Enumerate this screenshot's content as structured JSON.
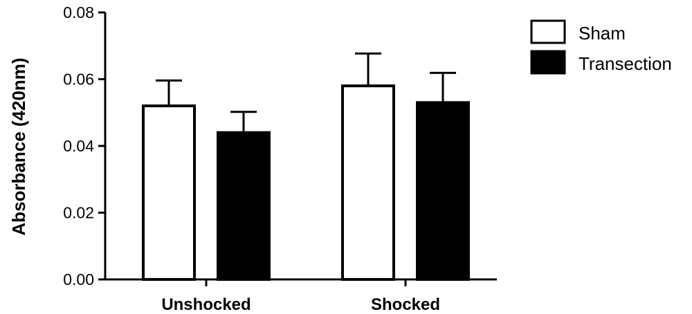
{
  "chart_data": {
    "type": "bar",
    "categories": [
      "Unshocked",
      "Shocked"
    ],
    "series": [
      {
        "name": "Sham",
        "values": [
          0.052,
          0.058
        ],
        "errors": [
          0.0076,
          0.0097
        ],
        "fill": "#ffffff",
        "stroke": "#000000"
      },
      {
        "name": "Transection",
        "values": [
          0.044,
          0.053
        ],
        "errors": [
          0.0062,
          0.0089
        ],
        "fill": "#000000",
        "stroke": "#000000"
      }
    ],
    "ylabel": "Absorbance (420nm)",
    "xlabel": "",
    "ylim": [
      0,
      0.08
    ],
    "yticks": [
      0.0,
      0.02,
      0.04,
      0.06,
      0.08
    ],
    "ytick_labels": [
      "0.00",
      "0.02",
      "0.04",
      "0.06",
      "0.08"
    ],
    "grid": false,
    "legend": "top-right",
    "error_bars": "upper"
  }
}
